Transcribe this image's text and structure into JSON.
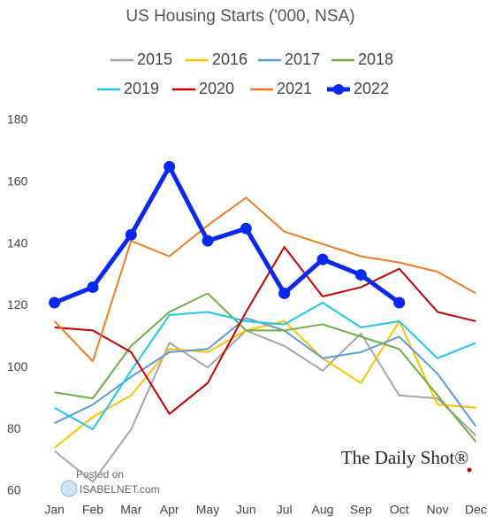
{
  "chart_data": {
    "type": "line",
    "title": "US Housing Starts ('000, NSA)",
    "categories": [
      "Jan",
      "Feb",
      "Mar",
      "Apr",
      "May",
      "Jun",
      "Jul",
      "Aug",
      "Sep",
      "Oct",
      "Nov",
      "Dec"
    ],
    "series": [
      {
        "name": "2015",
        "color": "#a5a5a5",
        "values": [
          73,
          63,
          80,
          108,
          100,
          112,
          107,
          99,
          111,
          91,
          90,
          78
        ]
      },
      {
        "name": "2016",
        "color": "#ffc000",
        "values": [
          74,
          84,
          91,
          106,
          105,
          112,
          115,
          103,
          95,
          115,
          88,
          87
        ]
      },
      {
        "name": "2017",
        "color": "#5b9bd5",
        "values": [
          82,
          88,
          97,
          105,
          106,
          116,
          112,
          103,
          105,
          110,
          98,
          81
        ]
      },
      {
        "name": "2018",
        "color": "#70ad47",
        "values": [
          92,
          90,
          107,
          118,
          124,
          112,
          112,
          114,
          110,
          106,
          91,
          76
        ]
      },
      {
        "name": "2019",
        "color": "#1cc6f0",
        "values": [
          87,
          80,
          99,
          117,
          118,
          115,
          114,
          121,
          113,
          115,
          103,
          108
        ]
      },
      {
        "name": "2020",
        "color": "#c00000",
        "values": [
          113,
          112,
          105,
          85,
          95,
          118,
          139,
          123,
          126,
          132,
          118,
          115
        ]
      },
      {
        "name": "2021",
        "color": "#f47a20",
        "values": [
          115,
          102,
          141,
          136,
          146,
          155,
          144,
          140,
          136,
          134,
          131,
          124
        ]
      },
      {
        "name": "2022",
        "color": "#0a28f0",
        "values": [
          121,
          126,
          143,
          165,
          141,
          145,
          124,
          135,
          130,
          121,
          null,
          null
        ]
      }
    ],
    "ylim": [
      60,
      180
    ],
    "yticks": [
      60,
      80,
      100,
      120,
      140,
      160,
      180
    ],
    "grid": false,
    "brand": "The Daily Shot®",
    "posted_on": "Posted on",
    "site": "ISABELNET.com"
  }
}
